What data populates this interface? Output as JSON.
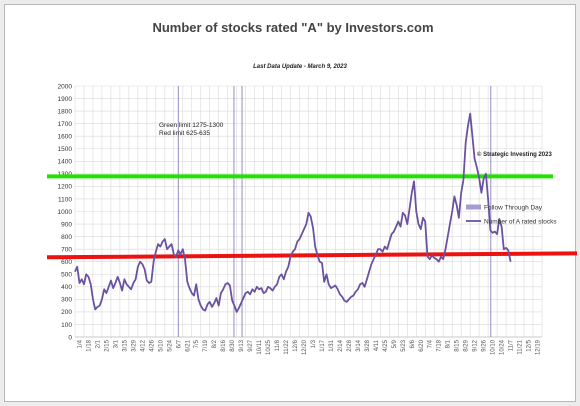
{
  "chart_data": {
    "type": "line",
    "title": "Number of stocks rated \"A\" by Investors.com",
    "subtitle": "Last Data Update - March  9, 2023",
    "ylim": [
      0,
      2000
    ],
    "yticks": [
      0,
      100,
      200,
      300,
      400,
      500,
      600,
      700,
      800,
      900,
      1000,
      1100,
      1200,
      1300,
      1400,
      1500,
      1600,
      1700,
      1800,
      1900,
      2000
    ],
    "grid": true,
    "xticks": [
      "1/4",
      "1/18",
      "2/1",
      "2/15",
      "3/1",
      "3/15",
      "3/29",
      "4/12",
      "4/26",
      "5/10",
      "5/24",
      "6/7",
      "6/21",
      "7/5",
      "7/19",
      "8/2",
      "8/16",
      "8/30",
      "9/13",
      "9/27",
      "10/11",
      "10/25",
      "11/8",
      "11/22",
      "12/6",
      "12/20",
      "1/3",
      "1/17",
      "1/31",
      "2/14",
      "2/28",
      "3/14",
      "3/28",
      "4/11",
      "4/25",
      "5/9",
      "5/23",
      "6/6",
      "6/20",
      "7/4",
      "7/18",
      "8/1",
      "8/15",
      "8/29",
      "9/12",
      "9/26",
      "10/10",
      "10/24",
      "11/7",
      "11/21",
      "12/5",
      "12/19"
    ],
    "annotations": [
      "Green limit 1275-1300",
      "Red limit 625-635",
      "© Strategic Investing 2023"
    ],
    "legend_position": "right",
    "limits": {
      "green": 1280,
      "red": 635
    },
    "follow_through_days": [
      11.5,
      17.7,
      18.6,
      46.3
    ],
    "series": [
      {
        "name": "Number of A rated stocks",
        "color": "#6a52a0",
        "points": [
          [
            0,
            520
          ],
          [
            0.25,
            560
          ],
          [
            0.5,
            430
          ],
          [
            0.75,
            460
          ],
          [
            1,
            420
          ],
          [
            1.25,
            500
          ],
          [
            1.5,
            480
          ],
          [
            1.75,
            420
          ],
          [
            2,
            300
          ],
          [
            2.25,
            220
          ],
          [
            2.5,
            240
          ],
          [
            2.75,
            250
          ],
          [
            3,
            300
          ],
          [
            3.25,
            380
          ],
          [
            3.5,
            350
          ],
          [
            3.75,
            400
          ],
          [
            4,
            450
          ],
          [
            4.25,
            390
          ],
          [
            4.5,
            430
          ],
          [
            4.75,
            480
          ],
          [
            5,
            430
          ],
          [
            5.25,
            370
          ],
          [
            5.5,
            460
          ],
          [
            5.75,
            420
          ],
          [
            6,
            400
          ],
          [
            6.25,
            380
          ],
          [
            6.5,
            430
          ],
          [
            6.75,
            460
          ],
          [
            7,
            560
          ],
          [
            7.25,
            600
          ],
          [
            7.5,
            580
          ],
          [
            7.75,
            540
          ],
          [
            8,
            450
          ],
          [
            8.25,
            430
          ],
          [
            8.5,
            440
          ],
          [
            8.75,
            600
          ],
          [
            9,
            680
          ],
          [
            9.25,
            740
          ],
          [
            9.5,
            720
          ],
          [
            9.75,
            760
          ],
          [
            10,
            780
          ],
          [
            10.25,
            700
          ],
          [
            10.5,
            720
          ],
          [
            10.75,
            740
          ],
          [
            11,
            660
          ],
          [
            11.25,
            640
          ],
          [
            11.5,
            690
          ],
          [
            11.75,
            660
          ],
          [
            12,
            700
          ],
          [
            12.25,
            620
          ],
          [
            12.5,
            440
          ],
          [
            12.75,
            390
          ],
          [
            13,
            350
          ],
          [
            13.25,
            330
          ],
          [
            13.5,
            420
          ],
          [
            13.75,
            300
          ],
          [
            14,
            250
          ],
          [
            14.25,
            220
          ],
          [
            14.5,
            210
          ],
          [
            14.75,
            260
          ],
          [
            15,
            280
          ],
          [
            15.25,
            240
          ],
          [
            15.5,
            270
          ],
          [
            15.75,
            310
          ],
          [
            16,
            250
          ],
          [
            16.25,
            350
          ],
          [
            16.5,
            380
          ],
          [
            16.75,
            420
          ],
          [
            17,
            430
          ],
          [
            17.25,
            410
          ],
          [
            17.5,
            290
          ],
          [
            17.75,
            250
          ],
          [
            18,
            200
          ],
          [
            18.25,
            230
          ],
          [
            18.5,
            270
          ],
          [
            18.75,
            310
          ],
          [
            19,
            350
          ],
          [
            19.25,
            360
          ],
          [
            19.5,
            340
          ],
          [
            19.75,
            380
          ],
          [
            20,
            360
          ],
          [
            20.25,
            400
          ],
          [
            20.5,
            380
          ],
          [
            20.75,
            390
          ],
          [
            21,
            350
          ],
          [
            21.25,
            360
          ],
          [
            21.5,
            400
          ],
          [
            21.75,
            390
          ],
          [
            22,
            370
          ],
          [
            22.25,
            400
          ],
          [
            22.5,
            420
          ],
          [
            22.75,
            480
          ],
          [
            23,
            500
          ],
          [
            23.25,
            460
          ],
          [
            23.5,
            520
          ],
          [
            23.75,
            560
          ],
          [
            24,
            640
          ],
          [
            24.25,
            680
          ],
          [
            24.5,
            700
          ],
          [
            24.75,
            760
          ],
          [
            25,
            780
          ],
          [
            25.25,
            820
          ],
          [
            25.5,
            860
          ],
          [
            25.75,
            900
          ],
          [
            26,
            990
          ],
          [
            26.25,
            960
          ],
          [
            26.5,
            870
          ],
          [
            26.75,
            720
          ],
          [
            27,
            650
          ],
          [
            27.25,
            600
          ],
          [
            27.5,
            590
          ],
          [
            27.75,
            440
          ],
          [
            28,
            500
          ],
          [
            28.25,
            420
          ],
          [
            28.5,
            390
          ],
          [
            28.75,
            400
          ],
          [
            29,
            410
          ],
          [
            29.25,
            380
          ],
          [
            29.5,
            340
          ],
          [
            29.75,
            320
          ],
          [
            30,
            290
          ],
          [
            30.25,
            280
          ],
          [
            30.5,
            300
          ],
          [
            30.75,
            320
          ],
          [
            31,
            330
          ],
          [
            31.25,
            360
          ],
          [
            31.5,
            380
          ],
          [
            31.75,
            420
          ],
          [
            32,
            430
          ],
          [
            32.25,
            400
          ],
          [
            32.5,
            460
          ],
          [
            32.75,
            520
          ],
          [
            33,
            580
          ],
          [
            33.25,
            620
          ],
          [
            33.5,
            660
          ],
          [
            33.75,
            700
          ],
          [
            34,
            700
          ],
          [
            34.25,
            680
          ],
          [
            34.5,
            720
          ],
          [
            34.75,
            700
          ],
          [
            35,
            760
          ],
          [
            35.25,
            820
          ],
          [
            35.5,
            840
          ],
          [
            35.75,
            880
          ],
          [
            36,
            920
          ],
          [
            36.25,
            880
          ],
          [
            36.5,
            990
          ],
          [
            36.75,
            970
          ],
          [
            37,
            900
          ],
          [
            37.25,
            1020
          ],
          [
            37.5,
            1150
          ],
          [
            37.75,
            1240
          ],
          [
            38,
            1000
          ],
          [
            38.25,
            900
          ],
          [
            38.5,
            860
          ],
          [
            38.75,
            950
          ],
          [
            39,
            920
          ],
          [
            39.25,
            640
          ],
          [
            39.5,
            620
          ],
          [
            39.75,
            650
          ],
          [
            40,
            630
          ],
          [
            40.25,
            620
          ],
          [
            40.5,
            600
          ],
          [
            40.75,
            640
          ],
          [
            41,
            620
          ],
          [
            41.25,
            700
          ],
          [
            41.5,
            800
          ],
          [
            41.75,
            900
          ],
          [
            42,
            1000
          ],
          [
            42.25,
            1120
          ],
          [
            42.5,
            1050
          ],
          [
            42.75,
            950
          ],
          [
            43,
            1150
          ],
          [
            43.25,
            1250
          ],
          [
            43.5,
            1550
          ],
          [
            43.75,
            1680
          ],
          [
            44,
            1780
          ],
          [
            44.25,
            1600
          ],
          [
            44.5,
            1420
          ],
          [
            44.75,
            1350
          ],
          [
            45,
            1270
          ],
          [
            45.25,
            1150
          ],
          [
            45.5,
            1260
          ],
          [
            45.75,
            1300
          ],
          [
            46,
            1100
          ],
          [
            46.25,
            850
          ],
          [
            46.5,
            830
          ],
          [
            46.75,
            840
          ],
          [
            47,
            820
          ],
          [
            47.25,
            940
          ],
          [
            47.5,
            880
          ],
          [
            47.75,
            700
          ],
          [
            48,
            710
          ],
          [
            48.25,
            690
          ],
          [
            48.5,
            600
          ]
        ]
      }
    ],
    "legend": [
      {
        "label": "Follow Through Day",
        "color": "#a89bd0"
      },
      {
        "label": "Number of A rated stocks",
        "color": "#6a52a0"
      }
    ]
  }
}
